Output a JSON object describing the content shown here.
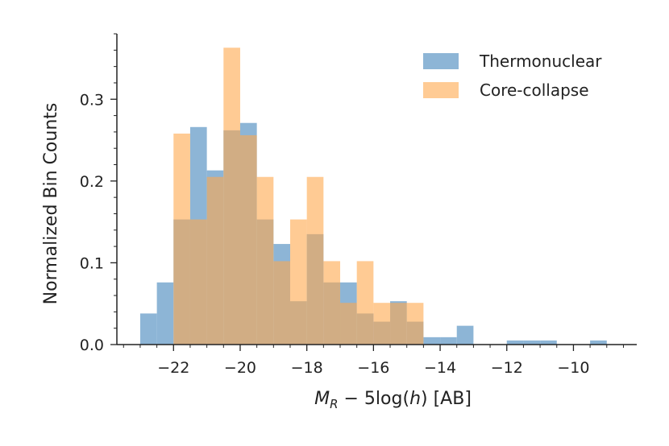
{
  "chart_data": {
    "type": "histogram",
    "title": "",
    "xlabel": "M_R − 5log(h) [AB]",
    "xlabel_parts": {
      "m": "M",
      "sub": "R",
      "rest": " − 5log(",
      "h": "h",
      "end": ") [AB]"
    },
    "ylabel": "Normalized Bin Counts",
    "xlim": [
      -23.7,
      -8.1
    ],
    "ylim": [
      0.0,
      0.38
    ],
    "x_ticks": [
      -22,
      -20,
      -18,
      -16,
      -14,
      -12,
      -10
    ],
    "x_tick_labels": [
      "−22",
      "−20",
      "−18",
      "−16",
      "−14",
      "−12",
      "−10"
    ],
    "y_ticks": [
      0.0,
      0.1,
      0.2,
      0.3
    ],
    "y_tick_labels": [
      "0.0",
      "0.1",
      "0.2",
      "0.3"
    ],
    "legend_position": "top-right",
    "series": [
      {
        "name": "Thermonuclear",
        "color": "#8db5d6",
        "opacity": 1.0,
        "bins": [
          {
            "x0": -23.0,
            "x1": -22.5,
            "value": 0.038
          },
          {
            "x0": -22.5,
            "x1": -22.0,
            "value": 0.076
          },
          {
            "x0": -22.0,
            "x1": -21.5,
            "value": 0.153
          },
          {
            "x0": -21.5,
            "x1": -21.0,
            "value": 0.266
          },
          {
            "x0": -21.0,
            "x1": -20.5,
            "value": 0.213
          },
          {
            "x0": -20.5,
            "x1": -20.0,
            "value": 0.262
          },
          {
            "x0": -20.0,
            "x1": -19.5,
            "value": 0.271
          },
          {
            "x0": -19.5,
            "x1": -19.0,
            "value": 0.153
          },
          {
            "x0": -19.0,
            "x1": -18.5,
            "value": 0.123
          },
          {
            "x0": -18.5,
            "x1": -18.0,
            "value": 0.053
          },
          {
            "x0": -18.0,
            "x1": -17.5,
            "value": 0.135
          },
          {
            "x0": -17.5,
            "x1": -17.0,
            "value": 0.076
          },
          {
            "x0": -17.0,
            "x1": -16.5,
            "value": 0.076
          },
          {
            "x0": -16.5,
            "x1": -16.0,
            "value": 0.038
          },
          {
            "x0": -16.0,
            "x1": -15.5,
            "value": 0.028
          },
          {
            "x0": -15.5,
            "x1": -15.0,
            "value": 0.053
          },
          {
            "x0": -15.0,
            "x1": -14.5,
            "value": 0.028
          },
          {
            "x0": -14.5,
            "x1": -14.0,
            "value": 0.009
          },
          {
            "x0": -14.0,
            "x1": -13.5,
            "value": 0.009
          },
          {
            "x0": -13.5,
            "x1": -13.0,
            "value": 0.023
          },
          {
            "x0": -12.0,
            "x1": -11.5,
            "value": 0.005
          },
          {
            "x0": -11.5,
            "x1": -11.0,
            "value": 0.005
          },
          {
            "x0": -11.0,
            "x1": -10.5,
            "value": 0.005
          },
          {
            "x0": -9.5,
            "x1": -9.0,
            "value": 0.005
          }
        ]
      },
      {
        "name": "Core-collapse",
        "color": "#ffa94d",
        "opacity": 0.6,
        "bins": [
          {
            "x0": -22.0,
            "x1": -21.5,
            "value": 0.258
          },
          {
            "x0": -21.5,
            "x1": -21.0,
            "value": 0.153
          },
          {
            "x0": -21.0,
            "x1": -20.5,
            "value": 0.205
          },
          {
            "x0": -20.5,
            "x1": -20.0,
            "value": 0.363
          },
          {
            "x0": -20.0,
            "x1": -19.5,
            "value": 0.256
          },
          {
            "x0": -19.5,
            "x1": -19.0,
            "value": 0.205
          },
          {
            "x0": -19.0,
            "x1": -18.5,
            "value": 0.102
          },
          {
            "x0": -18.5,
            "x1": -18.0,
            "value": 0.153
          },
          {
            "x0": -18.0,
            "x1": -17.5,
            "value": 0.205
          },
          {
            "x0": -17.5,
            "x1": -17.0,
            "value": 0.102
          },
          {
            "x0": -17.0,
            "x1": -16.5,
            "value": 0.051
          },
          {
            "x0": -16.5,
            "x1": -16.0,
            "value": 0.102
          },
          {
            "x0": -16.0,
            "x1": -15.5,
            "value": 0.051
          },
          {
            "x0": -15.5,
            "x1": -15.0,
            "value": 0.051
          },
          {
            "x0": -15.0,
            "x1": -14.5,
            "value": 0.051
          }
        ]
      }
    ]
  }
}
